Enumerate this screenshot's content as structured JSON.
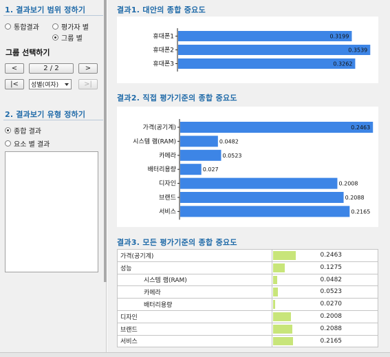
{
  "left": {
    "section1_title": "1. 결과보기 범위 정하기",
    "scope_options": [
      {
        "label": "통합결과",
        "selected": false
      },
      {
        "label": "평가자 별",
        "selected": false
      },
      {
        "label": "그룹 별",
        "selected": true
      }
    ],
    "group_select_label": "그룹 선택하기",
    "prev_label": "<",
    "page_indicator": "2 / 2",
    "next_label": ">",
    "first_label": "|<",
    "group_dropdown_value": "성별(여자)",
    "last_label": ">|",
    "section2_title": "2. 결과보기 유형 정하기",
    "type_options": [
      {
        "label": "종합 결과",
        "selected": true
      },
      {
        "label": "요소 별 결과",
        "selected": false
      }
    ]
  },
  "result1": {
    "title": "결과1. 대안의 종합 중요도",
    "chart_data": {
      "type": "bar",
      "orientation": "horizontal",
      "categories": [
        "휴대폰1",
        "휴대폰2",
        "휴대폰3"
      ],
      "values": [
        0.3199,
        0.3539,
        0.3262
      ],
      "value_labels": [
        "0.3199",
        "0.3539",
        "0.3262"
      ],
      "bar_color": "#3d85e6",
      "xlim": [
        0,
        0.37
      ]
    }
  },
  "result2": {
    "title": "결과2. 직접 평가기준의 종합 중요도",
    "chart_data": {
      "type": "bar",
      "orientation": "horizontal",
      "categories": [
        "가격(공기계)",
        "시스템 램(RAM)",
        "카메라",
        "배터리용량",
        "디자인",
        "브랜드",
        "서비스"
      ],
      "values": [
        0.2463,
        0.0482,
        0.0523,
        0.027,
        0.2008,
        0.2088,
        0.2165
      ],
      "value_labels": [
        "0.2463",
        "0.0482",
        "0.0523",
        "0.027",
        "0.2008",
        "0.2088",
        "0.2165"
      ],
      "bar_color": "#3d85e6",
      "xlim": [
        0,
        0.254
      ]
    }
  },
  "result3": {
    "title": "결과3. 모든 평가기준의 종합 중요도",
    "bar_color": "#c8e57a",
    "rows": [
      {
        "name": "가격(공기계)",
        "value": 0.2463,
        "value_text": "0.2463",
        "indent": false
      },
      {
        "name": "성능",
        "value": 0.1275,
        "value_text": "0.1275",
        "indent": false
      },
      {
        "name": "시스템 램(RAM)",
        "value": 0.0482,
        "value_text": "0.0482",
        "indent": true
      },
      {
        "name": "카메라",
        "value": 0.0523,
        "value_text": "0.0523",
        "indent": true
      },
      {
        "name": "배터리용량",
        "value": 0.027,
        "value_text": "0.0270",
        "indent": true
      },
      {
        "name": "디자인",
        "value": 0.2008,
        "value_text": "0.2008",
        "indent": false
      },
      {
        "name": "브랜드",
        "value": 0.2088,
        "value_text": "0.2088",
        "indent": false
      },
      {
        "name": "서비스",
        "value": 0.2165,
        "value_text": "0.2165",
        "indent": false
      }
    ]
  }
}
